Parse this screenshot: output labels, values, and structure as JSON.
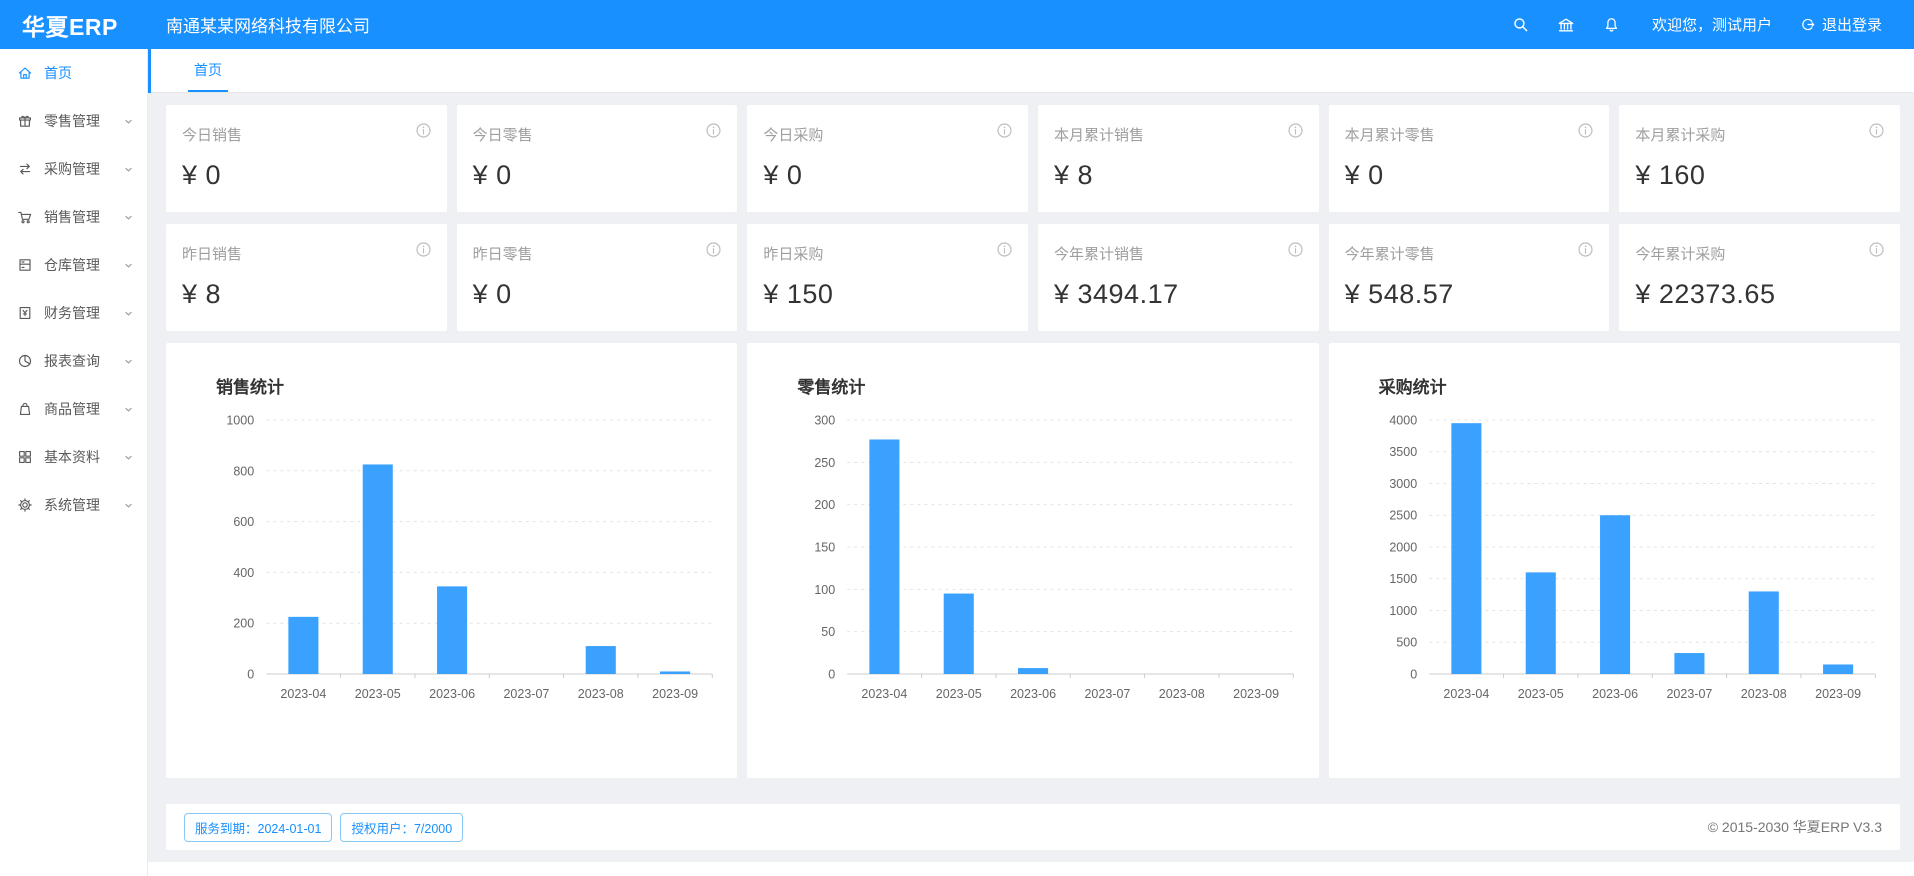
{
  "colors": {
    "accent": "#1890ff",
    "bar": "#3aa1ff",
    "axis": "#cccccc",
    "grid": "#e4e4e4",
    "tick_text": "#666666"
  },
  "header": {
    "logo": "华夏ERP",
    "company": "南通某某网络科技有限公司",
    "welcome": "欢迎您，测试用户",
    "logout_label": "退出登录",
    "icons": [
      "search-icon",
      "bank-icon",
      "bell-icon",
      "logout-icon"
    ]
  },
  "sidebar": {
    "items": [
      {
        "label": "首页",
        "icon": "home",
        "active": true,
        "expandable": false
      },
      {
        "label": "零售管理",
        "icon": "gift",
        "active": false,
        "expandable": true
      },
      {
        "label": "采购管理",
        "icon": "swap",
        "active": false,
        "expandable": true
      },
      {
        "label": "销售管理",
        "icon": "cart",
        "active": false,
        "expandable": true
      },
      {
        "label": "仓库管理",
        "icon": "warehouse",
        "active": false,
        "expandable": true
      },
      {
        "label": "财务管理",
        "icon": "finance",
        "active": false,
        "expandable": true
      },
      {
        "label": "报表查询",
        "icon": "pie-chart",
        "active": false,
        "expandable": true
      },
      {
        "label": "商品管理",
        "icon": "bag",
        "active": false,
        "expandable": true
      },
      {
        "label": "基本资料",
        "icon": "grid",
        "active": false,
        "expandable": true
      },
      {
        "label": "系统管理",
        "icon": "gear",
        "active": false,
        "expandable": true
      }
    ]
  },
  "tabs": [
    {
      "label": "首页",
      "active": true
    }
  ],
  "stats": {
    "cards": [
      {
        "label": "今日销售",
        "value": "¥ 0"
      },
      {
        "label": "今日零售",
        "value": "¥ 0"
      },
      {
        "label": "今日采购",
        "value": "¥ 0"
      },
      {
        "label": "本月累计销售",
        "value": "¥ 8"
      },
      {
        "label": "本月累计零售",
        "value": "¥ 0"
      },
      {
        "label": "本月累计采购",
        "value": "¥ 160"
      },
      {
        "label": "昨日销售",
        "value": "¥ 8"
      },
      {
        "label": "昨日零售",
        "value": "¥ 0"
      },
      {
        "label": "昨日采购",
        "value": "¥ 150"
      },
      {
        "label": "今年累计销售",
        "value": "¥ 3494.17"
      },
      {
        "label": "今年累计零售",
        "value": "¥ 548.57"
      },
      {
        "label": "今年累计采购",
        "value": "¥ 22373.65"
      }
    ]
  },
  "chart_data": [
    {
      "type": "bar",
      "title": "销售统计",
      "categories": [
        "2023-04",
        "2023-05",
        "2023-06",
        "2023-07",
        "2023-08",
        "2023-09"
      ],
      "values": [
        225,
        825,
        345,
        0,
        110,
        10
      ],
      "xlabel": "",
      "ylabel": "",
      "ylim": [
        0,
        1000
      ],
      "ytick_step": 200,
      "grid": "dashed",
      "legend": "none"
    },
    {
      "type": "bar",
      "title": "零售统计",
      "categories": [
        "2023-04",
        "2023-05",
        "2023-06",
        "2023-07",
        "2023-08",
        "2023-09"
      ],
      "values": [
        277,
        95,
        7,
        0,
        0,
        0
      ],
      "xlabel": "",
      "ylabel": "",
      "ylim": [
        0,
        300
      ],
      "ytick_step": 50,
      "grid": "dashed",
      "legend": "none"
    },
    {
      "type": "bar",
      "title": "采购统计",
      "categories": [
        "2023-04",
        "2023-05",
        "2023-06",
        "2023-07",
        "2023-08",
        "2023-09"
      ],
      "values": [
        3950,
        1600,
        2500,
        330,
        1300,
        150
      ],
      "xlabel": "",
      "ylabel": "",
      "ylim": [
        0,
        4000
      ],
      "ytick_step": 500,
      "grid": "dashed",
      "legend": "none"
    }
  ],
  "footer": {
    "badges": [
      "服务到期：2024-01-01",
      "授权用户：7/2000"
    ],
    "copyright": "© 2015-2030 华夏ERP V3.3"
  }
}
